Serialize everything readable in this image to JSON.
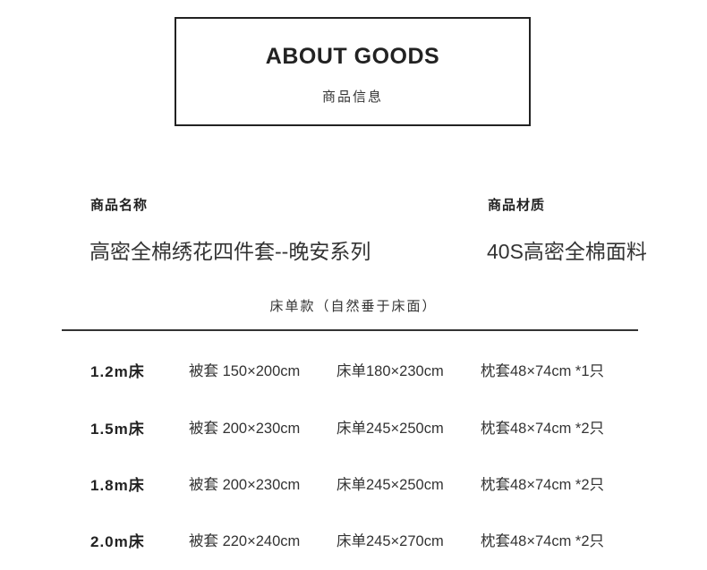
{
  "header": {
    "title": "ABOUT GOODS",
    "subtitle": "商品信息"
  },
  "info": {
    "name_label": "商品名称",
    "name_value": "高密全棉绣花四件套--晚安系列",
    "material_label": "商品材质",
    "material_value": "40S高密全棉面料"
  },
  "sizes": {
    "title": "床单款（自然垂于床面）",
    "rows": [
      {
        "size": "1.2m床",
        "duvet": "被套 150×200cm",
        "sheet": "床单180×230cm",
        "pillow": "枕套48×74cm *1只"
      },
      {
        "size": "1.5m床",
        "duvet": "被套 200×230cm",
        "sheet": "床单245×250cm",
        "pillow": "枕套48×74cm *2只"
      },
      {
        "size": "1.8m床",
        "duvet": "被套 200×230cm",
        "sheet": "床单245×250cm",
        "pillow": "枕套48×74cm *2只"
      },
      {
        "size": "2.0m床",
        "duvet": "被套 220×240cm",
        "sheet": "床单245×270cm",
        "pillow": "枕套48×74cm *2只"
      }
    ]
  }
}
